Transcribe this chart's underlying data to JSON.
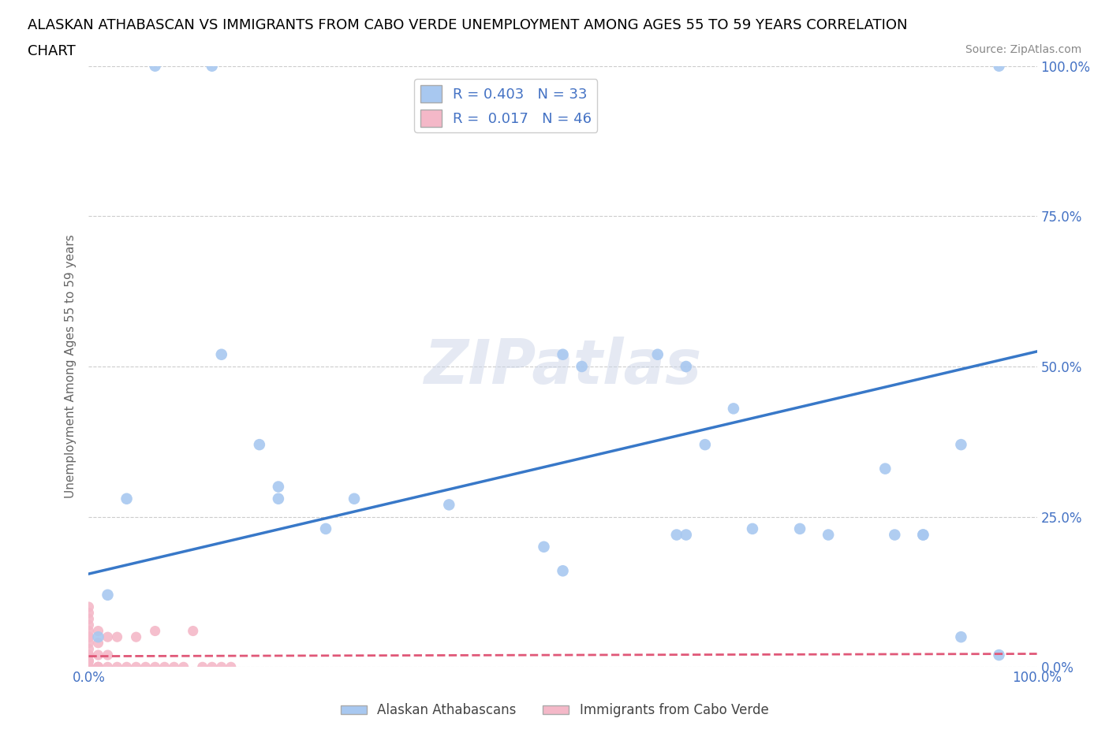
{
  "title_line1": "ALASKAN ATHABASCAN VS IMMIGRANTS FROM CABO VERDE UNEMPLOYMENT AMONG AGES 55 TO 59 YEARS CORRELATION",
  "title_line2": "CHART",
  "source": "Source: ZipAtlas.com",
  "ylabel": "Unemployment Among Ages 55 to 59 years",
  "watermark": "ZIPatlas",
  "blue_R": 0.403,
  "blue_N": 33,
  "pink_R": 0.017,
  "pink_N": 46,
  "blue_color": "#a8c8f0",
  "pink_color": "#f4b8c8",
  "blue_line_color": "#3878c8",
  "pink_line_color": "#e05878",
  "legend_label_blue": "Alaskan Athabascans",
  "legend_label_pink": "Immigrants from Cabo Verde",
  "blue_scatter_x": [
    0.07,
    0.13,
    0.96,
    0.14,
    0.18,
    0.2,
    0.25,
    0.28,
    0.5,
    0.52,
    0.6,
    0.63,
    0.68,
    0.7,
    0.75,
    0.78,
    0.85,
    0.88,
    0.92,
    0.04,
    0.02,
    0.01,
    0.2,
    0.38,
    0.48,
    0.5,
    0.62,
    0.63,
    0.65,
    0.84,
    0.88,
    0.92,
    0.96
  ],
  "blue_scatter_y": [
    1.0,
    1.0,
    1.0,
    0.52,
    0.37,
    0.28,
    0.23,
    0.28,
    0.52,
    0.5,
    0.52,
    0.5,
    0.43,
    0.23,
    0.23,
    0.22,
    0.22,
    0.22,
    0.37,
    0.28,
    0.12,
    0.05,
    0.3,
    0.27,
    0.2,
    0.16,
    0.22,
    0.22,
    0.37,
    0.33,
    0.22,
    0.05,
    0.02
  ],
  "pink_scatter_x": [
    0.0,
    0.0,
    0.0,
    0.0,
    0.0,
    0.0,
    0.0,
    0.0,
    0.0,
    0.0,
    0.0,
    0.0,
    0.0,
    0.0,
    0.0,
    0.0,
    0.0,
    0.0,
    0.0,
    0.0,
    0.0,
    0.01,
    0.01,
    0.01,
    0.01,
    0.01,
    0.01,
    0.02,
    0.02,
    0.02,
    0.03,
    0.03,
    0.04,
    0.05,
    0.05,
    0.06,
    0.07,
    0.07,
    0.08,
    0.09,
    0.1,
    0.11,
    0.12,
    0.13,
    0.14,
    0.15
  ],
  "pink_scatter_y": [
    0.0,
    0.0,
    0.0,
    0.0,
    0.0,
    0.0,
    0.0,
    0.01,
    0.01,
    0.02,
    0.02,
    0.03,
    0.04,
    0.05,
    0.05,
    0.06,
    0.07,
    0.08,
    0.09,
    0.1,
    0.0,
    0.0,
    0.0,
    0.0,
    0.02,
    0.04,
    0.06,
    0.0,
    0.02,
    0.05,
    0.0,
    0.05,
    0.0,
    0.0,
    0.05,
    0.0,
    0.0,
    0.06,
    0.0,
    0.0,
    0.0,
    0.06,
    0.0,
    0.0,
    0.0,
    0.0
  ],
  "blue_trend_x0": 0.0,
  "blue_trend_y0": 0.155,
  "blue_trend_x1": 1.0,
  "blue_trend_y1": 0.525,
  "pink_trend_x0": 0.0,
  "pink_trend_y0": 0.018,
  "pink_trend_x1": 1.0,
  "pink_trend_y1": 0.022,
  "xlim": [
    0.0,
    1.0
  ],
  "ylim": [
    0.0,
    1.0
  ],
  "ytick_positions": [
    0.0,
    0.25,
    0.5,
    0.75,
    1.0
  ],
  "grid_color": "#cccccc",
  "background_color": "#ffffff",
  "title_fontsize": 13,
  "tick_label_color": "#4472c4",
  "title_color": "#000000",
  "source_color": "#888888"
}
